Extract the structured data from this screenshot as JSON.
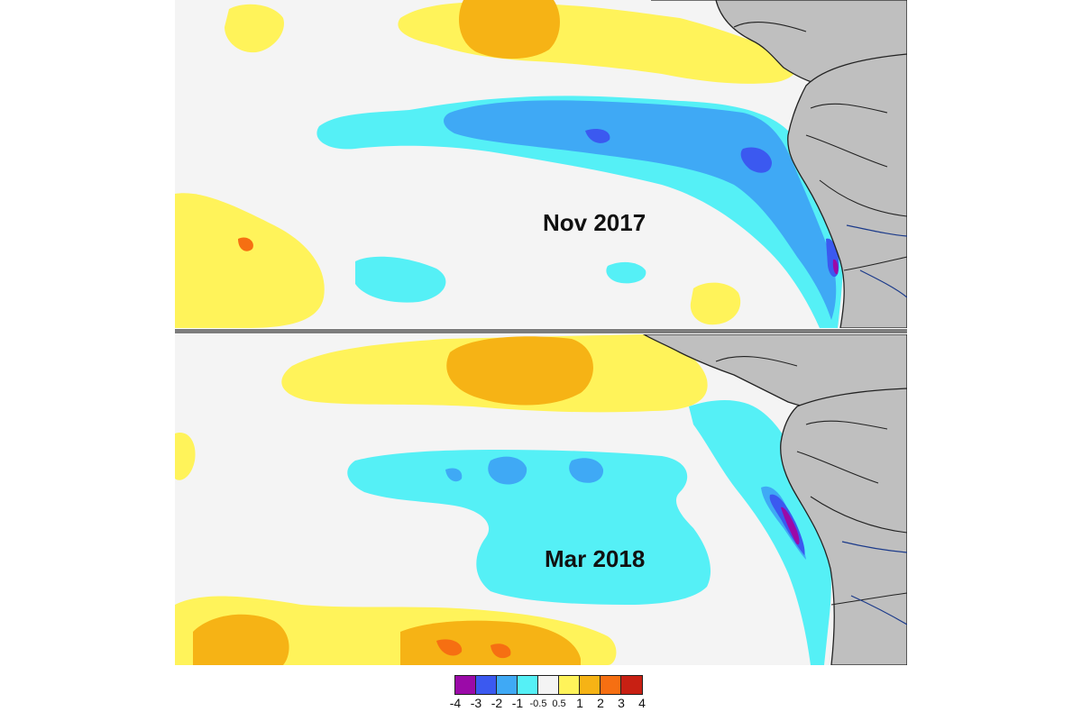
{
  "panels": {
    "top": {
      "label": "Nov 2017"
    },
    "bottom": {
      "label": "Mar 2018"
    }
  },
  "colorbar": {
    "colors": [
      "#9b0aa8",
      "#3b59f0",
      "#3fa9f5",
      "#55f0f6",
      "#f4f4f4",
      "#fff35a",
      "#f6b315",
      "#f66f12",
      "#c82013"
    ],
    "ticks": [
      "-4",
      "-3",
      "-2",
      "-1",
      "-0.5",
      "0.5",
      "1",
      "2",
      "3",
      "4"
    ]
  },
  "palette": {
    "land": "#bfbfbf",
    "ocean_neutral": "#f4f4f4",
    "warm_yellow": "#fff35a",
    "warm_orange": "#f6b315",
    "warm_red": "#f66f12",
    "cool_cyan": "#55f0f6",
    "cool_blue": "#3fa9f5",
    "cool_darkblue": "#3b59f0",
    "cool_purple": "#9b0aa8"
  }
}
